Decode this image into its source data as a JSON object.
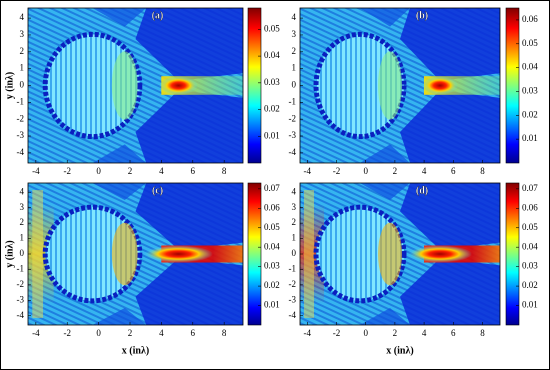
{
  "chart_data": [
    {
      "type": "heatmap",
      "panel_label": "(a)",
      "y_label": "y (inλ)",
      "xlim": [
        -4.5,
        9.2
      ],
      "ylim": [
        -4.6,
        4.6
      ],
      "xticks": [
        -4,
        -2,
        0,
        2,
        4,
        6,
        8
      ],
      "yticks": [
        -4,
        -3,
        -2,
        -1,
        0,
        1,
        2,
        3,
        4
      ],
      "clim": [
        0,
        0.058
      ],
      "cticks": [
        0.01,
        0.02,
        0.03,
        0.04,
        0.05
      ],
      "colormap": "jet"
    },
    {
      "type": "heatmap",
      "panel_label": "(b)",
      "xlim": [
        -4.5,
        9.2
      ],
      "ylim": [
        -4.6,
        4.6
      ],
      "xticks": [
        -4,
        -2,
        0,
        2,
        4,
        6,
        8
      ],
      "yticks": [
        -4,
        -3,
        -2,
        -1,
        0,
        1,
        2,
        3,
        4
      ],
      "clim": [
        0,
        0.065
      ],
      "cticks": [
        0.01,
        0.02,
        0.03,
        0.04,
        0.05,
        0.06
      ],
      "colormap": "jet"
    },
    {
      "type": "heatmap",
      "panel_label": "(c)",
      "y_label": "y (inλ)",
      "x_label": "x (inλ)",
      "xlim": [
        -4.5,
        9.2
      ],
      "ylim": [
        -4.6,
        4.6
      ],
      "xticks": [
        -4,
        -2,
        0,
        2,
        4,
        6,
        8
      ],
      "yticks": [
        -4,
        -3,
        -2,
        -1,
        0,
        1,
        2,
        3,
        4
      ],
      "clim": [
        0,
        0.073
      ],
      "cticks": [
        0.01,
        0.02,
        0.03,
        0.04,
        0.05,
        0.06,
        0.07
      ],
      "colormap": "jet"
    },
    {
      "type": "heatmap",
      "panel_label": "(d)",
      "x_label": "x (inλ)",
      "xlim": [
        -4.5,
        9.2
      ],
      "ylim": [
        -4.6,
        4.6
      ],
      "xticks": [
        -4,
        -2,
        0,
        2,
        4,
        6,
        8
      ],
      "yticks": [
        -4,
        -3,
        -2,
        -1,
        0,
        1,
        2,
        3,
        4
      ],
      "clim": [
        0,
        0.073
      ],
      "cticks": [
        0.01,
        0.02,
        0.03,
        0.04,
        0.05,
        0.06,
        0.07
      ],
      "colormap": "jet"
    }
  ]
}
